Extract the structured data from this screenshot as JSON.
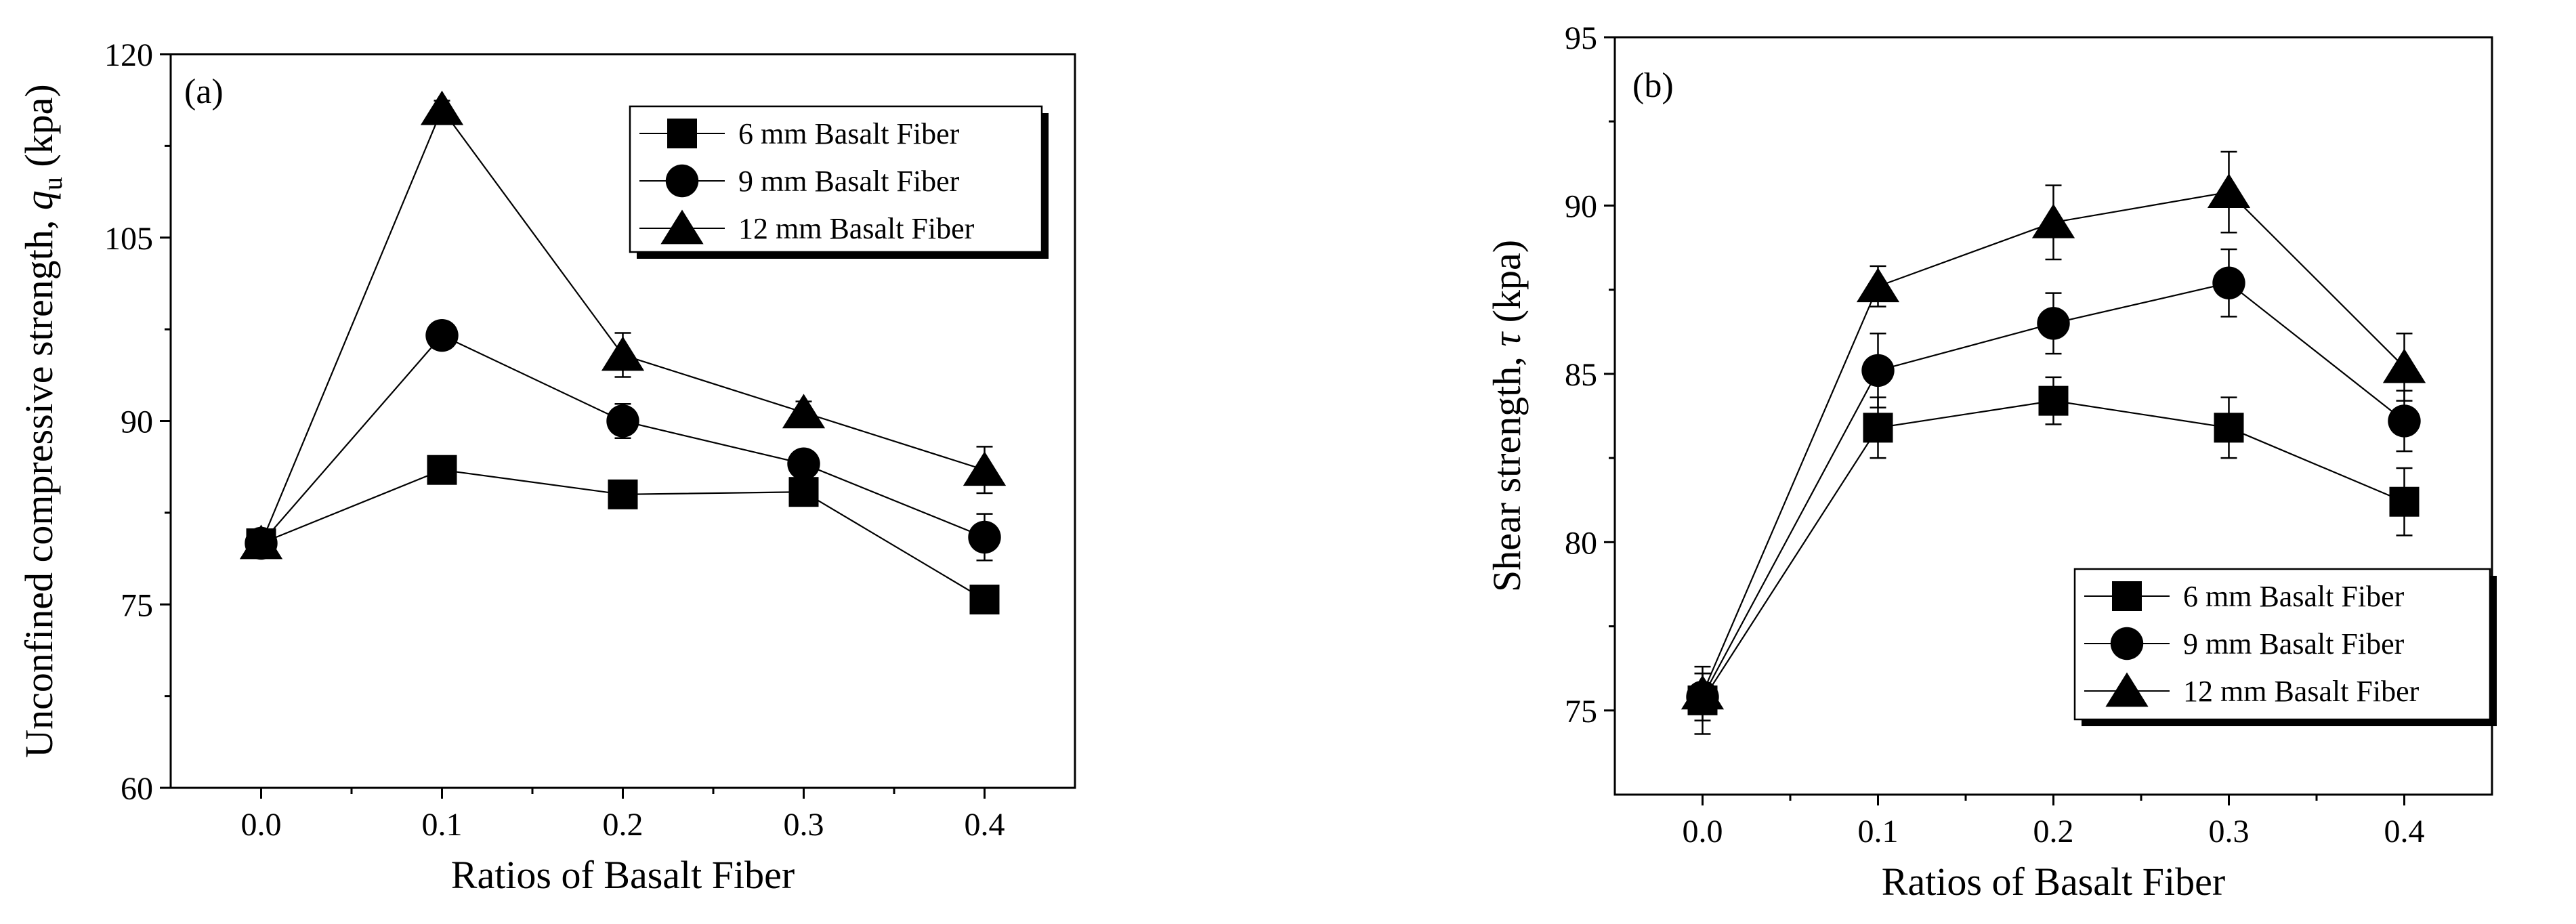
{
  "chart_data": [
    {
      "type": "line",
      "panel_label": "(a)",
      "xlabel": "Ratios of Basalt Fiber",
      "ylabel": {
        "prefix": "Unconfined compressive strength, ",
        "symbol": "q",
        "subscript": "u",
        "suffix": " (kpa)"
      },
      "x": [
        0.0,
        0.1,
        0.2,
        0.3,
        0.4
      ],
      "x_tick_labels": [
        "0.0",
        "0.1",
        "0.2",
        "0.3",
        "0.4"
      ],
      "xlim": [
        -0.05,
        0.45
      ],
      "ylim": [
        60,
        120
      ],
      "y_ticks": [
        60,
        75,
        90,
        105,
        120
      ],
      "y_tick_labels": [
        "60",
        "75",
        "90",
        "105",
        "120"
      ],
      "legend_position": "top-right",
      "series": [
        {
          "name": "6 mm Basalt Fiber",
          "marker": "square",
          "values": [
            80.0,
            86.0,
            84.0,
            84.2,
            75.4
          ],
          "errors": [
            0.8,
            0.9,
            0.8,
            0.8,
            0.7
          ]
        },
        {
          "name": "9 mm Basalt Fiber",
          "marker": "circle",
          "values": [
            80.0,
            97.0,
            90.0,
            86.5,
            80.5
          ],
          "errors": [
            0.8,
            0.9,
            1.4,
            1.0,
            1.9
          ]
        },
        {
          "name": "12 mm Basalt Fiber",
          "marker": "triangle",
          "values": [
            80.0,
            115.5,
            95.4,
            90.7,
            86.0
          ],
          "errors": [
            0.8,
            0.7,
            1.8,
            0.9,
            1.9
          ]
        }
      ]
    },
    {
      "type": "line",
      "panel_label": "(b)",
      "xlabel": "Ratios of Basalt Fiber",
      "ylabel": {
        "prefix": "Shear strength, ",
        "symbol": "τ",
        "subscript": "",
        "suffix": " (kpa)"
      },
      "x": [
        0.0,
        0.1,
        0.2,
        0.3,
        0.4
      ],
      "x_tick_labels": [
        "0.0",
        "0.1",
        "0.2",
        "0.3",
        "0.4"
      ],
      "xlim": [
        -0.05,
        0.45
      ],
      "ylim": [
        72.5,
        95
      ],
      "y_ticks": [
        75,
        80,
        85,
        90,
        95
      ],
      "y_tick_labels": [
        "75",
        "80",
        "85",
        "90",
        "95"
      ],
      "legend_position": "bottom-right",
      "series": [
        {
          "name": "6 mm Basalt Fiber",
          "marker": "square",
          "values": [
            75.3,
            83.4,
            84.2,
            83.4,
            81.2
          ],
          "errors": [
            1.0,
            0.9,
            0.7,
            0.9,
            1.0
          ]
        },
        {
          "name": "9 mm Basalt Fiber",
          "marker": "circle",
          "values": [
            75.4,
            85.1,
            86.5,
            87.7,
            83.6
          ],
          "errors": [
            0.7,
            1.1,
            0.9,
            1.0,
            0.9
          ]
        },
        {
          "name": "12 mm Basalt Fiber",
          "marker": "triangle",
          "values": [
            75.5,
            87.6,
            89.5,
            90.4,
            85.2
          ],
          "errors": [
            0.6,
            0.6,
            1.1,
            1.2,
            1.0
          ]
        }
      ]
    }
  ]
}
